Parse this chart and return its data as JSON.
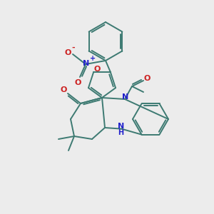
{
  "background_color": "#ececec",
  "bond_color": "#3d7a72",
  "atom_colors": {
    "N": "#2222cc",
    "O": "#cc2222",
    "H": "#2222cc"
  },
  "figsize": [
    3.0,
    3.0
  ],
  "dpi": 100
}
